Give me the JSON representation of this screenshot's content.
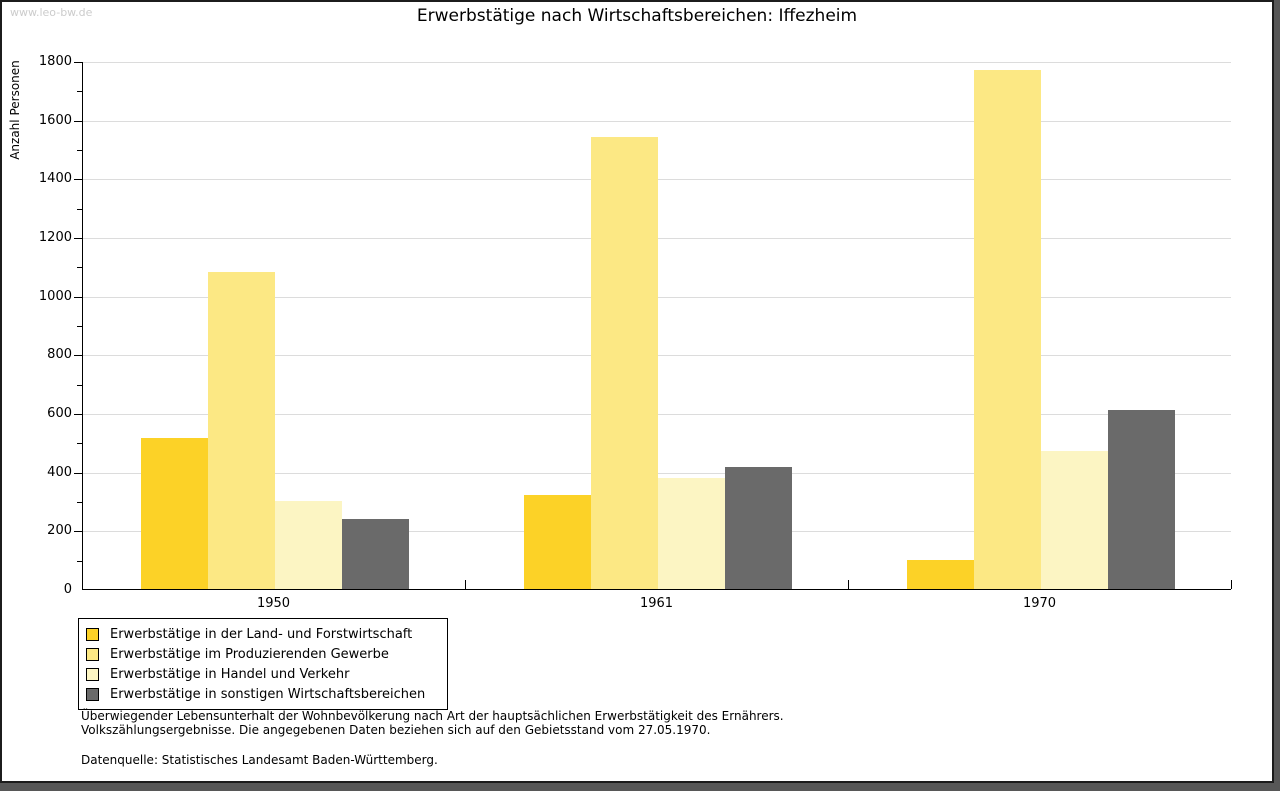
{
  "watermark": "www.leo-bw.de",
  "header": {
    "title": "Erwerbstätige nach Wirtschaftsbereichen: Iffezheim"
  },
  "chart_data": {
    "type": "bar",
    "title": "Erwerbstätige nach Wirtschaftsbereichen: Iffezheim",
    "xlabel": "",
    "ylabel": "Anzahl Personen",
    "categories": [
      "1950",
      "1961",
      "1970"
    ],
    "series": [
      {
        "name": "Erwerbstätige in der Land- und Forstwirtschaft",
        "color": "#fcd227",
        "values": [
          515,
          320,
          100
        ]
      },
      {
        "name": "Erwerbstätige im Produzierenden Gewerbe",
        "color": "#fce884",
        "values": [
          1080,
          1540,
          1770
        ]
      },
      {
        "name": "Erwerbstätige in Handel und Verkehr",
        "color": "#fcf5c3",
        "values": [
          300,
          380,
          470
        ]
      },
      {
        "name": "Erwerbstätige in sonstigen Wirtschaftsbereichen",
        "color": "#6a6a6a",
        "values": [
          240,
          415,
          610
        ]
      }
    ],
    "ylim": [
      0,
      1800
    ],
    "ytick_step": 200,
    "ytick_minor_step": 100,
    "grid": true,
    "gridline_color": "#dcdcdc",
    "legend_position": "bottom-left"
  },
  "footnotes": {
    "line1": "Überwiegender Lebensunterhalt der Wohnbevölkerung nach Art der hauptsächlichen Erwerbstätigkeit des Ernährers.",
    "line2": "Volkszählungsergebnisse. Die angegebenen Daten beziehen sich auf den Gebietsstand vom 27.05.1970.",
    "source": "Datenquelle: Statistisches Landesamt Baden-Württemberg."
  }
}
